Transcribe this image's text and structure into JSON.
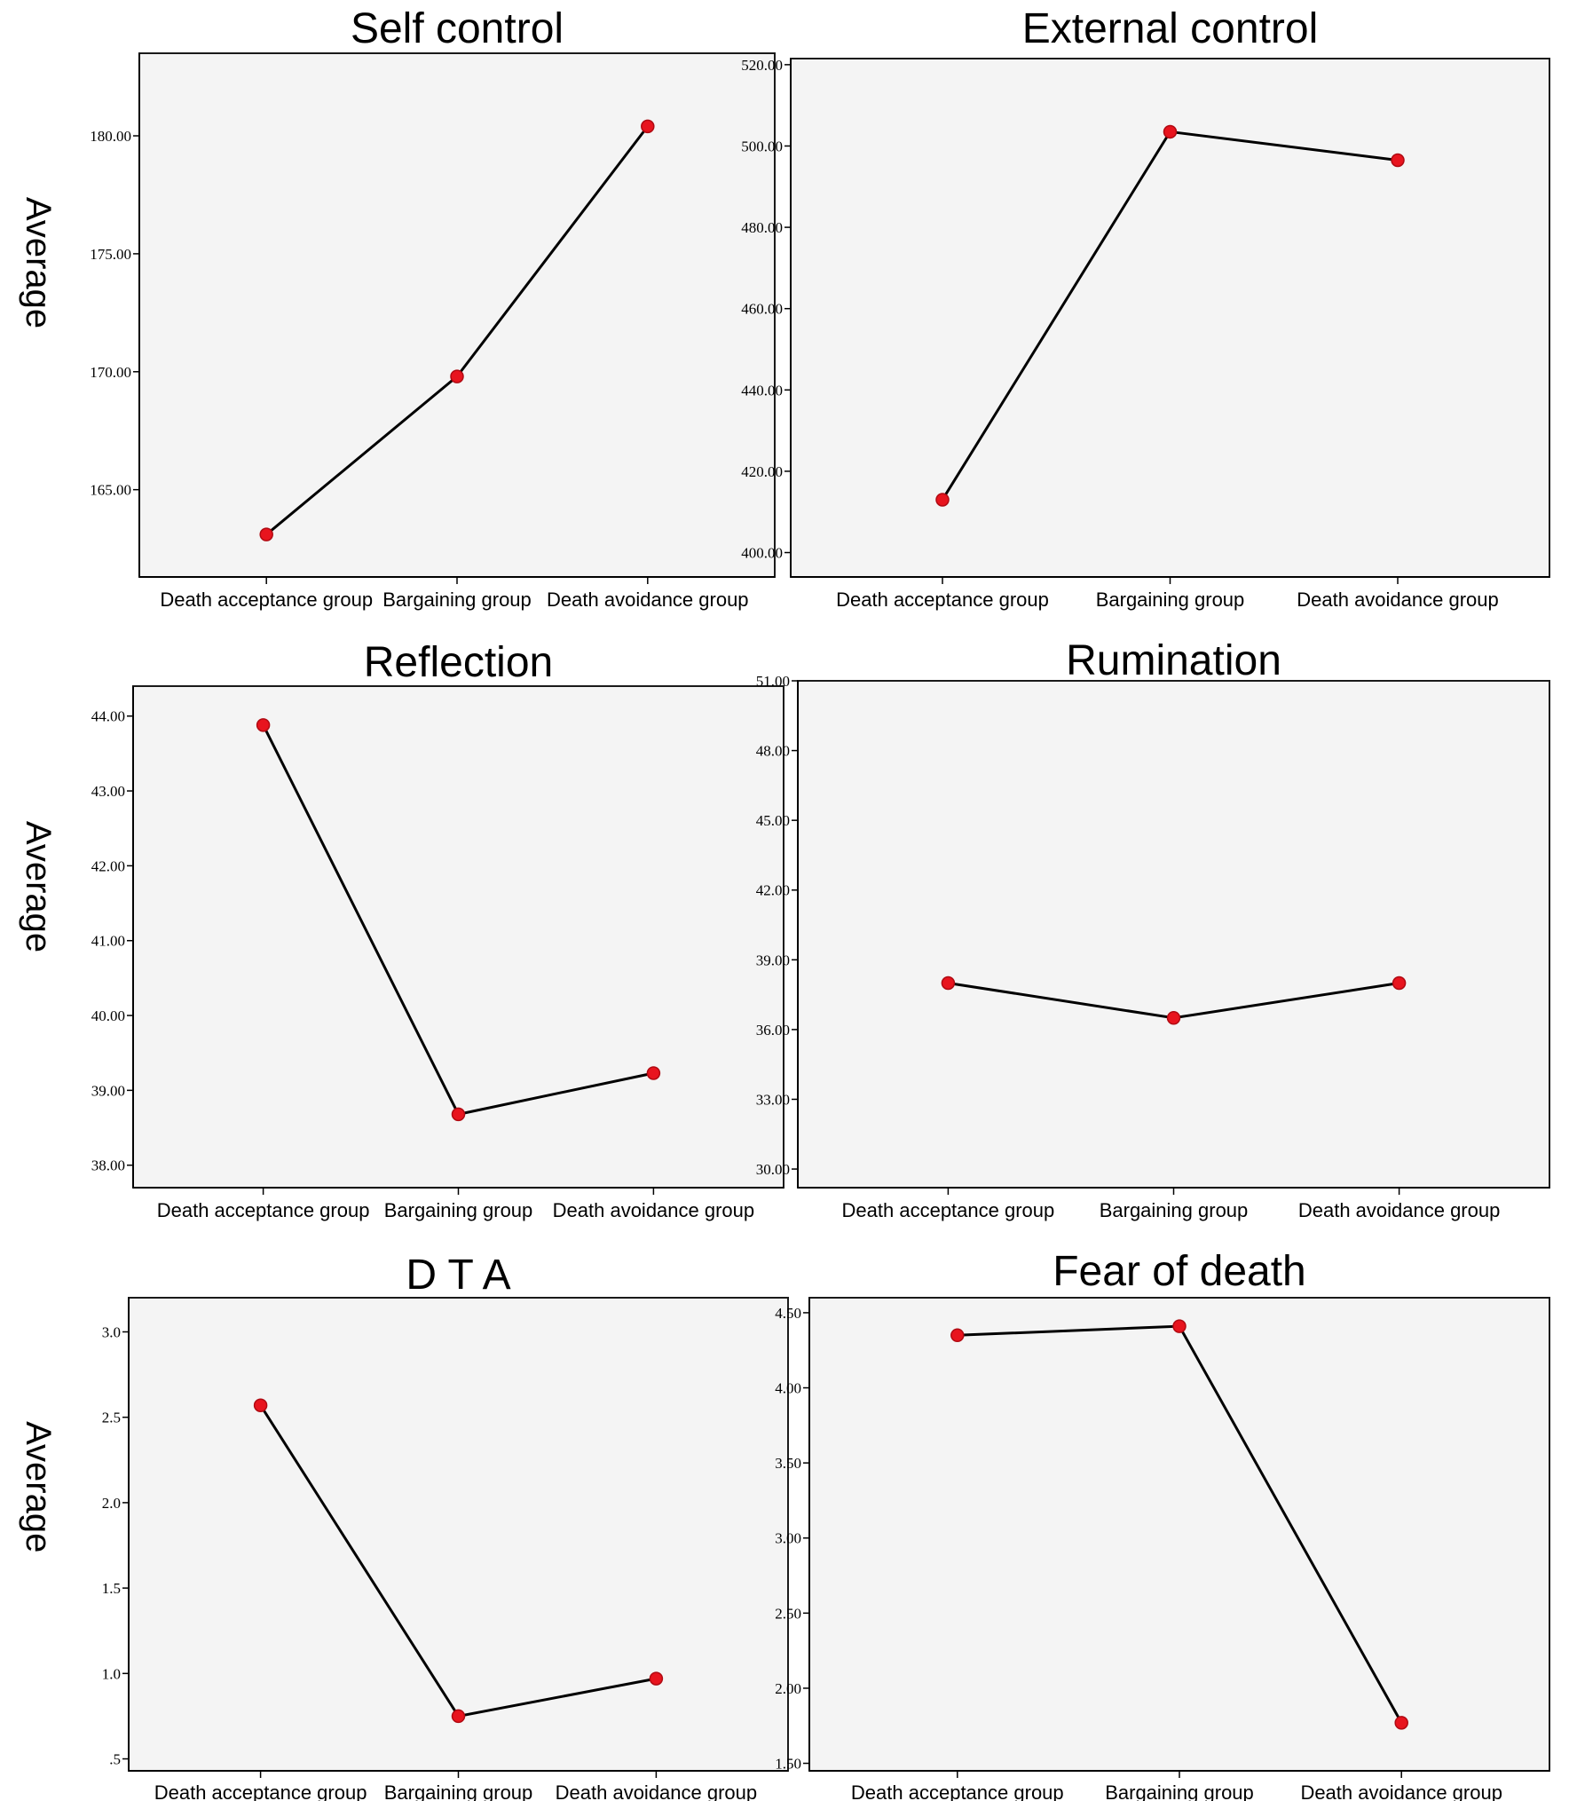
{
  "chart_data": [
    {
      "type": "line",
      "title": "Self control",
      "ylabel": "Average",
      "categories": [
        "Death acceptance group",
        "Bargaining group",
        "Death avoidance group"
      ],
      "values": [
        163.1,
        169.8,
        180.4
      ],
      "ylim": [
        161.3,
        183.5
      ],
      "yticks": [
        165,
        170,
        175,
        180
      ],
      "tick_labels": [
        "165.00",
        "170.00",
        "175.00",
        "180.00"
      ]
    },
    {
      "type": "line",
      "title": "External control",
      "ylabel": "",
      "categories": [
        "Death acceptance group",
        "Bargaining group",
        "Death avoidance group"
      ],
      "values": [
        413,
        503.5,
        496.5
      ],
      "ylim": [
        394,
        521.5
      ],
      "yticks": [
        400,
        420,
        440,
        460,
        480,
        500,
        520
      ],
      "tick_labels": [
        "400.00",
        "420.00",
        "440.00",
        "460.00",
        "480.00",
        "500.00",
        "520.00"
      ]
    },
    {
      "type": "line",
      "title": "Reflection",
      "ylabel": "Average",
      "categories": [
        "Death acceptance group",
        "Bargaining group",
        "Death avoidance group"
      ],
      "values": [
        43.88,
        38.68,
        39.23
      ],
      "ylim": [
        37.7,
        44.4
      ],
      "yticks": [
        38,
        39,
        40,
        41,
        42,
        43,
        44
      ],
      "tick_labels": [
        "38.00",
        "39.00",
        "40.00",
        "41.00",
        "42.00",
        "43.00",
        "44.00"
      ]
    },
    {
      "type": "line",
      "title": "Rumination",
      "ylabel": "",
      "categories": [
        "Death acceptance group",
        "Bargaining group",
        "Death avoidance group"
      ],
      "values": [
        38.0,
        36.5,
        38.0
      ],
      "ylim": [
        29.2,
        51.0
      ],
      "yticks": [
        30,
        33,
        36,
        39,
        42,
        45,
        48,
        51
      ],
      "tick_labels": [
        "30.00",
        "33.00",
        "36.00",
        "39.00",
        "42.00",
        "45.00",
        "48.00",
        "51.00"
      ]
    },
    {
      "type": "line",
      "title": "D T A",
      "ylabel": "Average",
      "categories": [
        "Death acceptance group",
        "Bargaining group",
        "Death avoidance group"
      ],
      "values": [
        2.57,
        0.75,
        0.97
      ],
      "ylim": [
        0.43,
        3.2
      ],
      "yticks": [
        0.5,
        1.0,
        1.5,
        2.0,
        2.5,
        3.0
      ],
      "tick_labels": [
        ".5",
        "1.0",
        "1.5",
        "2.0",
        "2.5",
        "3.0"
      ]
    },
    {
      "type": "line",
      "title": "Fear of death",
      "ylabel": "",
      "categories": [
        "Death acceptance group",
        "Bargaining group",
        "Death avoidance group"
      ],
      "values": [
        4.35,
        4.41,
        1.77
      ],
      "ylim": [
        1.45,
        4.6
      ],
      "yticks": [
        1.5,
        2.0,
        2.5,
        3.0,
        3.5,
        4.0,
        4.5
      ],
      "tick_labels": [
        "1.50",
        "2.00",
        "2.50",
        "3.00",
        "3.50",
        "4.00",
        "4.50"
      ]
    }
  ],
  "colors": {
    "point": "#e8141e",
    "line": "#000000",
    "plot_background": "#f4f4f4"
  }
}
